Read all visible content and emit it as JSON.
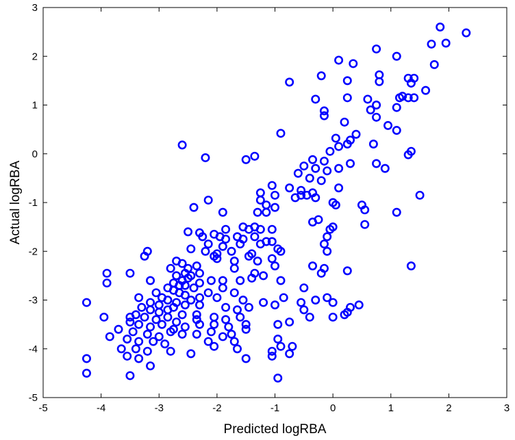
{
  "chart_data": {
    "type": "scatter",
    "xlabel": "Predicted logRBA",
    "ylabel": "Actual logRBA",
    "xlim": [
      -5,
      3
    ],
    "ylim": [
      -5,
      3
    ],
    "xticks": [
      "-5",
      "-4",
      "-3",
      "-2",
      "-1",
      "0",
      "1",
      "2",
      "3"
    ],
    "yticks": [
      "-5",
      "-4",
      "-3",
      "-2",
      "-1",
      "0",
      "1",
      "2",
      "3"
    ],
    "grid": false,
    "marker": "circle",
    "color": "#0000ff",
    "points": [
      [
        1.85,
        2.6
      ],
      [
        2.3,
        2.48
      ],
      [
        1.7,
        2.25
      ],
      [
        1.95,
        2.27
      ],
      [
        0.75,
        2.15
      ],
      [
        1.1,
        2.0
      ],
      [
        0.1,
        1.92
      ],
      [
        1.75,
        1.83
      ],
      [
        0.35,
        1.85
      ],
      [
        0.8,
        1.62
      ],
      [
        -0.2,
        1.6
      ],
      [
        0.8,
        1.48
      ],
      [
        -0.75,
        1.47
      ],
      [
        0.25,
        1.5
      ],
      [
        1.3,
        1.55
      ],
      [
        1.4,
        1.55
      ],
      [
        1.35,
        1.45
      ],
      [
        1.6,
        1.3
      ],
      [
        1.2,
        1.18
      ],
      [
        1.15,
        1.15
      ],
      [
        1.3,
        1.15
      ],
      [
        1.4,
        1.15
      ],
      [
        -0.3,
        1.12
      ],
      [
        0.25,
        1.15
      ],
      [
        0.6,
        1.12
      ],
      [
        0.75,
        1.0
      ],
      [
        1.1,
        0.95
      ],
      [
        0.65,
        0.9
      ],
      [
        -0.15,
        0.88
      ],
      [
        -0.15,
        0.78
      ],
      [
        0.75,
        0.75
      ],
      [
        0.2,
        0.65
      ],
      [
        0.95,
        0.58
      ],
      [
        1.1,
        0.48
      ],
      [
        -0.9,
        0.42
      ],
      [
        0.4,
        0.4
      ],
      [
        0.3,
        0.28
      ],
      [
        0.05,
        0.32
      ],
      [
        0.25,
        0.2
      ],
      [
        0.7,
        0.2
      ],
      [
        0.1,
        0.15
      ],
      [
        -0.05,
        0.05
      ],
      [
        -2.6,
        0.18
      ],
      [
        1.35,
        0.05
      ],
      [
        1.3,
        -0.02
      ],
      [
        -1.35,
        -0.05
      ],
      [
        -2.2,
        -0.08
      ],
      [
        -1.5,
        -0.12
      ],
      [
        -0.35,
        -0.12
      ],
      [
        -0.15,
        -0.15
      ],
      [
        0.3,
        -0.2
      ],
      [
        0.75,
        -0.2
      ],
      [
        0.9,
        -0.3
      ],
      [
        -0.5,
        -0.25
      ],
      [
        -0.3,
        -0.3
      ],
      [
        -0.1,
        -0.35
      ],
      [
        0.1,
        -0.3
      ],
      [
        -0.6,
        -0.4
      ],
      [
        -0.4,
        -0.5
      ],
      [
        -0.2,
        -0.55
      ],
      [
        -1.05,
        -0.65
      ],
      [
        -0.75,
        -0.7
      ],
      [
        -0.55,
        -0.75
      ],
      [
        -0.35,
        -0.8
      ],
      [
        0.1,
        -0.7
      ],
      [
        -1.25,
        -0.8
      ],
      [
        -1.0,
        -0.85
      ],
      [
        -0.65,
        -0.9
      ],
      [
        -0.55,
        -0.85
      ],
      [
        -0.45,
        -0.85
      ],
      [
        -0.3,
        -0.9
      ],
      [
        -1.25,
        -0.95
      ],
      [
        -1.15,
        -1.05
      ],
      [
        -2.15,
        -0.95
      ],
      [
        1.5,
        -0.85
      ],
      [
        0.0,
        -1.0
      ],
      [
        0.05,
        -1.05
      ],
      [
        0.5,
        -1.05
      ],
      [
        0.55,
        -1.15
      ],
      [
        1.1,
        -1.2
      ],
      [
        -2.4,
        -1.1
      ],
      [
        -1.3,
        -1.2
      ],
      [
        -1.0,
        -1.1
      ],
      [
        -1.15,
        -1.2
      ],
      [
        -0.25,
        -1.35
      ],
      [
        -0.35,
        -1.4
      ],
      [
        -1.9,
        -1.2
      ],
      [
        0.55,
        -1.45
      ],
      [
        0.0,
        -1.5
      ],
      [
        -2.5,
        -1.6
      ],
      [
        -2.3,
        -1.62
      ],
      [
        -2.25,
        -1.7
      ],
      [
        -2.05,
        -1.65
      ],
      [
        -1.95,
        -1.7
      ],
      [
        -1.85,
        -1.55
      ],
      [
        -1.55,
        -1.5
      ],
      [
        -1.45,
        -1.55
      ],
      [
        -1.35,
        -1.5
      ],
      [
        -1.25,
        -1.55
      ],
      [
        -1.05,
        -1.55
      ],
      [
        -0.05,
        -1.55
      ],
      [
        -1.85,
        -1.75
      ],
      [
        -1.65,
        -1.7
      ],
      [
        -1.55,
        -1.75
      ],
      [
        -1.35,
        -1.7
      ],
      [
        -1.15,
        -1.8
      ],
      [
        -0.1,
        -1.7
      ],
      [
        -2.15,
        -1.85
      ],
      [
        -1.9,
        -1.9
      ],
      [
        -1.6,
        -1.85
      ],
      [
        -1.25,
        -1.85
      ],
      [
        -1.05,
        -1.8
      ],
      [
        -0.95,
        -1.95
      ],
      [
        -0.15,
        -1.85
      ],
      [
        -2.45,
        -1.95
      ],
      [
        -2.2,
        -2.0
      ],
      [
        -2.0,
        -2.05
      ],
      [
        -1.75,
        -2.0
      ],
      [
        -1.4,
        -2.05
      ],
      [
        -0.9,
        -2.0
      ],
      [
        -0.1,
        -2.0
      ],
      [
        -3.2,
        -2.0
      ],
      [
        -3.25,
        -2.1
      ],
      [
        -2.0,
        -2.15
      ],
      [
        -1.45,
        -2.1
      ],
      [
        -1.05,
        -2.15
      ],
      [
        -2.7,
        -2.2
      ],
      [
        -2.6,
        -2.25
      ],
      [
        -2.05,
        -2.1
      ],
      [
        -1.7,
        -2.2
      ],
      [
        -1.3,
        -2.2
      ],
      [
        -1.0,
        -2.3
      ],
      [
        -0.35,
        -2.3
      ],
      [
        -0.15,
        -2.35
      ],
      [
        -2.5,
        -2.35
      ],
      [
        -2.35,
        -2.3
      ],
      [
        -2.55,
        -2.45
      ],
      [
        -2.45,
        -2.5
      ],
      [
        -2.3,
        -2.45
      ],
      [
        -2.8,
        -2.35
      ],
      [
        -2.7,
        -2.5
      ],
      [
        -3.9,
        -2.45
      ],
      [
        -3.5,
        -2.45
      ],
      [
        -1.7,
        -2.35
      ],
      [
        -1.35,
        -2.45
      ],
      [
        -0.2,
        -2.45
      ],
      [
        1.35,
        -2.3
      ],
      [
        0.25,
        -2.4
      ],
      [
        -2.6,
        -2.6
      ],
      [
        -2.5,
        -2.55
      ],
      [
        -2.75,
        -2.65
      ],
      [
        -2.65,
        -2.7
      ],
      [
        -2.55,
        -2.7
      ],
      [
        -2.3,
        -2.65
      ],
      [
        -2.1,
        -2.6
      ],
      [
        -1.9,
        -2.6
      ],
      [
        -1.6,
        -2.6
      ],
      [
        -1.4,
        -2.55
      ],
      [
        -1.2,
        -2.5
      ],
      [
        -0.9,
        -2.6
      ],
      [
        -3.9,
        -2.65
      ],
      [
        -3.15,
        -2.6
      ],
      [
        -2.85,
        -2.75
      ],
      [
        -2.75,
        -2.8
      ],
      [
        -2.65,
        -2.85
      ],
      [
        -2.55,
        -2.9
      ],
      [
        -2.4,
        -2.75
      ],
      [
        -2.15,
        -2.85
      ],
      [
        -1.9,
        -2.75
      ],
      [
        -0.5,
        -2.75
      ],
      [
        -3.05,
        -2.85
      ],
      [
        -2.95,
        -2.95
      ],
      [
        -2.85,
        -3.0
      ],
      [
        -2.7,
        -3.05
      ],
      [
        -2.45,
        -3.0
      ],
      [
        -2.3,
        -2.95
      ],
      [
        -2.0,
        -2.95
      ],
      [
        -1.7,
        -2.85
      ],
      [
        -1.55,
        -3.0
      ],
      [
        -3.35,
        -2.95
      ],
      [
        -3.15,
        -3.05
      ],
      [
        -3.0,
        -3.1
      ],
      [
        -2.75,
        -3.15
      ],
      [
        -2.55,
        -3.1
      ],
      [
        -2.3,
        -3.1
      ],
      [
        -1.2,
        -3.05
      ],
      [
        -1.0,
        -3.1
      ],
      [
        -0.85,
        -2.95
      ],
      [
        -0.55,
        -3.05
      ],
      [
        -0.1,
        -2.95
      ],
      [
        0.0,
        -3.05
      ],
      [
        -0.3,
        -3.0
      ],
      [
        0.45,
        -3.1
      ],
      [
        0.3,
        -3.15
      ],
      [
        -4.25,
        -3.05
      ],
      [
        -3.3,
        -3.15
      ],
      [
        -3.15,
        -3.2
      ],
      [
        -3.0,
        -3.25
      ],
      [
        -2.85,
        -3.2
      ],
      [
        -2.6,
        -3.3
      ],
      [
        -2.35,
        -3.3
      ],
      [
        -1.85,
        -3.15
      ],
      [
        -1.65,
        -3.2
      ],
      [
        -1.45,
        -3.15
      ],
      [
        -0.5,
        -3.2
      ],
      [
        0.25,
        -3.25
      ],
      [
        -3.5,
        -3.35
      ],
      [
        -3.4,
        -3.3
      ],
      [
        -3.25,
        -3.35
      ],
      [
        -3.05,
        -3.4
      ],
      [
        -2.85,
        -3.35
      ],
      [
        -2.7,
        -3.45
      ],
      [
        -2.35,
        -3.4
      ],
      [
        -2.05,
        -3.35
      ],
      [
        -1.85,
        -3.4
      ],
      [
        -1.6,
        -3.35
      ],
      [
        -0.4,
        -3.35
      ],
      [
        0.0,
        -3.35
      ],
      [
        0.2,
        -3.3
      ],
      [
        -3.95,
        -3.35
      ],
      [
        -3.5,
        -3.45
      ],
      [
        -3.35,
        -3.5
      ],
      [
        -3.15,
        -3.55
      ],
      [
        -2.95,
        -3.5
      ],
      [
        -2.75,
        -3.6
      ],
      [
        -2.55,
        -3.55
      ],
      [
        -2.3,
        -3.5
      ],
      [
        -2.05,
        -3.5
      ],
      [
        -1.8,
        -3.55
      ],
      [
        -1.5,
        -3.5
      ],
      [
        -0.95,
        -3.5
      ],
      [
        -0.75,
        -3.45
      ],
      [
        -3.7,
        -3.6
      ],
      [
        -3.45,
        -3.65
      ],
      [
        -3.2,
        -3.7
      ],
      [
        -3.0,
        -3.75
      ],
      [
        -2.8,
        -3.65
      ],
      [
        -2.6,
        -3.7
      ],
      [
        -2.35,
        -3.7
      ],
      [
        -2.1,
        -3.65
      ],
      [
        -1.9,
        -3.75
      ],
      [
        -1.75,
        -3.7
      ],
      [
        -1.5,
        -3.6
      ],
      [
        -3.85,
        -3.75
      ],
      [
        -3.55,
        -3.8
      ],
      [
        -3.35,
        -3.85
      ],
      [
        -3.1,
        -3.85
      ],
      [
        -2.9,
        -3.9
      ],
      [
        -2.15,
        -3.85
      ],
      [
        -2.05,
        -3.95
      ],
      [
        -1.7,
        -3.85
      ],
      [
        -0.95,
        -3.8
      ],
      [
        -0.9,
        -3.95
      ],
      [
        -3.65,
        -4.0
      ],
      [
        -3.4,
        -4.0
      ],
      [
        -3.2,
        -4.05
      ],
      [
        -2.8,
        -4.05
      ],
      [
        -2.45,
        -4.1
      ],
      [
        -1.65,
        -4.0
      ],
      [
        -1.05,
        -4.05
      ],
      [
        -0.7,
        -3.95
      ],
      [
        -0.75,
        -4.1
      ],
      [
        -3.55,
        -4.15
      ],
      [
        -3.35,
        -4.2
      ],
      [
        -1.5,
        -4.2
      ],
      [
        -1.05,
        -4.15
      ],
      [
        -4.25,
        -4.2
      ],
      [
        -3.15,
        -4.35
      ],
      [
        -4.25,
        -4.5
      ],
      [
        -3.5,
        -4.55
      ],
      [
        -0.95,
        -4.6
      ]
    ]
  }
}
